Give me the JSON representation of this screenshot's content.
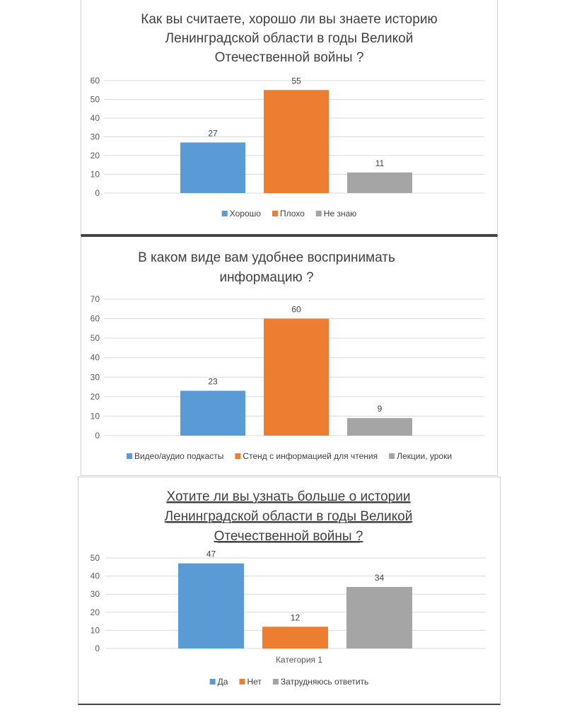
{
  "charts": [
    {
      "title_lines": [
        "Как вы считаете, хорошо ли вы знаете историю",
        "Ленинградской области в годы Великой",
        "Отечественной войны ?"
      ],
      "title_underlined": false,
      "chart_data": {
        "type": "bar",
        "categories": [
          ""
        ],
        "series": [
          {
            "name": "Хорошо",
            "values": [
              27
            ],
            "color": "#5b9bd5"
          },
          {
            "name": "Плохо",
            "values": [
              55
            ],
            "color": "#ed7d31"
          },
          {
            "name": "Не знаю",
            "values": [
              11
            ],
            "color": "#a5a5a5"
          }
        ],
        "ylim": [
          0,
          60
        ],
        "yticks": [
          "0",
          "10",
          "20",
          "30",
          "40",
          "50",
          "60"
        ],
        "xlabel": "",
        "legend": "bottom"
      }
    },
    {
      "title_lines": [
        "В каком виде вам удобнее воспринимать",
        "информацию ?"
      ],
      "title_underlined": false,
      "chart_data": {
        "type": "bar",
        "categories": [
          ""
        ],
        "series": [
          {
            "name": "Видео/аудио подкасты",
            "values": [
              23
            ],
            "color": "#5b9bd5"
          },
          {
            "name": "Стенд с информацией для чтения",
            "values": [
              60
            ],
            "color": "#ed7d31"
          },
          {
            "name": "Лекции, уроки",
            "values": [
              9
            ],
            "color": "#a5a5a5"
          }
        ],
        "ylim": [
          0,
          70
        ],
        "yticks": [
          "0",
          "10",
          "20",
          "30",
          "40",
          "50",
          "60",
          "70"
        ],
        "xlabel": "",
        "legend": "bottom"
      }
    },
    {
      "title_lines": [
        "Хотите ли вы узнать больше о истории",
        "Ленинградской области в годы Великой",
        "Отечественной войны ?"
      ],
      "title_underlined": true,
      "chart_data": {
        "type": "bar",
        "categories": [
          "Категория 1"
        ],
        "series": [
          {
            "name": "Да",
            "values": [
              47
            ],
            "color": "#5b9bd5"
          },
          {
            "name": "Нет",
            "values": [
              12
            ],
            "color": "#ed7d31"
          },
          {
            "name": "Затрудняюсь ответить",
            "values": [
              34
            ],
            "color": "#a5a5a5"
          }
        ],
        "ylim": [
          0,
          50
        ],
        "yticks": [
          "0",
          "10",
          "20",
          "30",
          "40",
          "50"
        ],
        "xlabel": "Категория 1",
        "legend": "bottom"
      }
    }
  ]
}
